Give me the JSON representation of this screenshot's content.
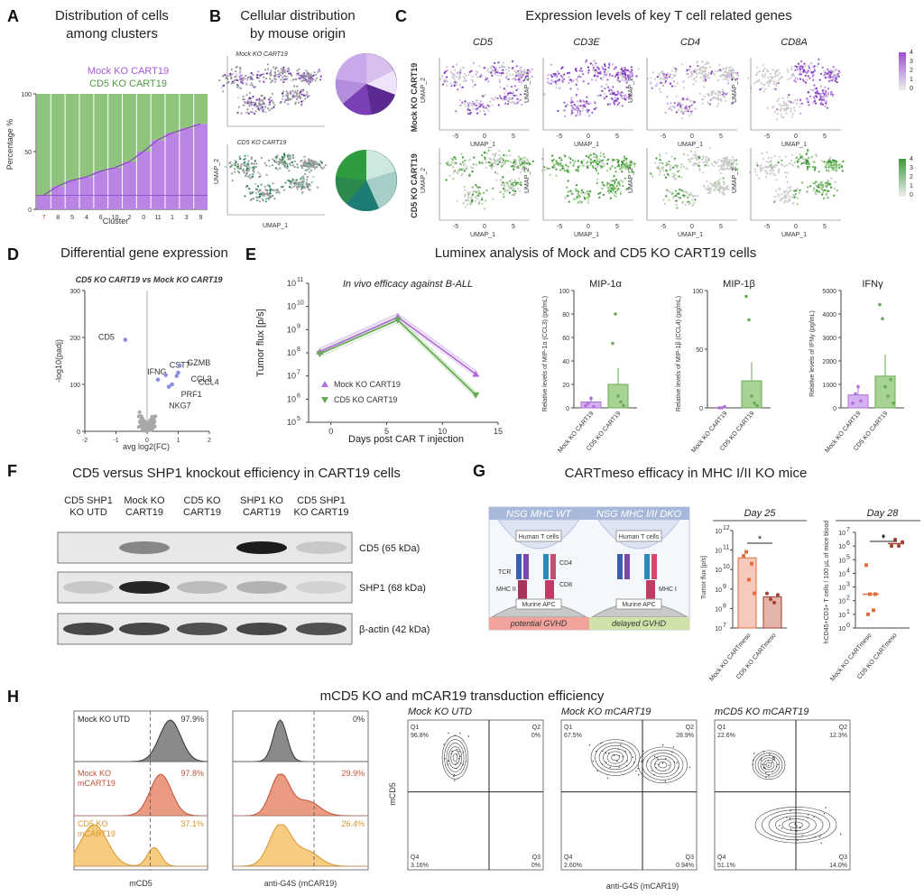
{
  "colors": {
    "mock": "#b06ed9",
    "cd5ko": "#6aaa55",
    "mock_light": "#d8b7ef",
    "cd5ko_light": "#a9d39a",
    "orange": "#e0703f",
    "salmon": "#e98c74",
    "yellow": "#f5c06a",
    "brown": "#a0402e",
    "grey_cells": "#c8c8c8"
  },
  "panels": {
    "A": {
      "letter": "A",
      "title1": "Distribution of cells",
      "title2": "among clusters",
      "legend_mock": "Mock KO CART19",
      "legend_cd5": "CD5 KO CART19",
      "ylabel": "Percentage %",
      "xlabel": "Cluster"
    },
    "B": {
      "letter": "B",
      "title1": "Cellular distribution",
      "title2": "by mouse origin",
      "mock_label": "Mock KO CART19",
      "cd5_label": "CD5 KO CART19",
      "axis_x": "UMAP_1",
      "axis_y": "UMAP_2"
    },
    "C": {
      "letter": "C",
      "title": "Expression levels of key T cell related genes",
      "genes": [
        "CD5",
        "CD3E",
        "CD4",
        "CD8A"
      ],
      "row_mock": "Mock KO CART19",
      "row_cd5": "CD5 KO CART19",
      "axis_x": "UMAP_1",
      "axis_y": "UMAP_2"
    },
    "D": {
      "letter": "D",
      "title": "Differential gene expression",
      "subtitle": "CD5 KO CART19 vs Mock KO CART19",
      "ylabel": "-log10(padj)",
      "xlabel": "avg log2(FC)",
      "genes": [
        "CD5",
        "IFNG",
        "CST7",
        "GZMB",
        "CCL3",
        "CCL4",
        "PRF1",
        "NKG7"
      ]
    },
    "E": {
      "letter": "E",
      "title": "Luminex analysis of Mock and CD5 KO CART19 cells",
      "invivo_title": "In vivo efficacy against B-ALL",
      "ylabel": "Tumor flux [p/s]",
      "xlabel": "Days post CAR T injection",
      "legend_mock": "Mock KO CART19",
      "legend_cd5": "CD5 KO CART19",
      "mip1a_title": "MIP-1α",
      "mip1b_title": "MIP-1β",
      "ifng_title": "IFNγ",
      "mip1a_ylabel": "Relative levels of MIP-1α (CCL3) (pg/mL)",
      "mip1b_ylabel": "Relative levels of MIP-1β (CCL4) (pg/mL)",
      "ifng_ylabel": "Relative levels of IFNγ (pg/mL)",
      "cat_mock": "Mock KO CART19",
      "cat_cd5": "CD5 KO CART19"
    },
    "F": {
      "letter": "F",
      "title": "CD5 versus SHP1 knockout efficiency in CART19 cells",
      "lanes": [
        "CD5 SHP1 KO UTD",
        "Mock KO CART19",
        "CD5 KO CART19",
        "SHP1 KO CART19",
        "CD5 SHP1 KO CART19"
      ],
      "bands": [
        "CD5 (65 kDa)",
        "SHP1 (68 kDa)",
        "β-actin (42 kDa)"
      ]
    },
    "G": {
      "letter": "G",
      "title": "CARTmeso efficacy in MHC I/II KO mice",
      "wt_label": "NSG MHC WT",
      "dko_label": "NSG MHC I/II DKO",
      "human_t": "Human T cells",
      "murine_apc": "Murine APC",
      "tcr": "TCR",
      "cd4": "CD4",
      "cd8": "CD8",
      "mhc2": "MHC II",
      "mhc1": "MHC I",
      "potential": "potential GVHD",
      "delayed": "delayed GVHD",
      "day25": "Day 25",
      "day28": "Day 28",
      "flux_ylabel": "Tumor flux [p/s]",
      "count_ylabel": "hCD45+CD3+ T cells / 100 µL of mice blood",
      "cat_mock": "Mock KO CARTmeso",
      "cat_cd5": "CD5 KO CARTmeso"
    },
    "H": {
      "letter": "H",
      "title": "mCD5 KO and mCAR19 transduction efficiency",
      "hist1_labels": [
        "Mock KO UTD",
        "Mock KO mCART19",
        "CD5 KO mCART19"
      ],
      "hist1_pcts": [
        "97.9%",
        "97.8%",
        "37.1%"
      ],
      "hist1_xlabel": "mCD5",
      "hist2_pcts": [
        "0%",
        "29.9%",
        "26.4%"
      ],
      "hist2_xlabel": "anti-G4S (mCAR19)",
      "flow_titles": [
        "Mock KO UTD",
        "Mock KO mCART19",
        "mCD5 KO mCART19"
      ],
      "flow_q1": [
        "96.8%",
        "67.5%",
        "22.6%"
      ],
      "flow_q2": [
        "0%",
        "28.9%",
        "12.3%"
      ],
      "flow_q3": [
        "0%",
        "0.94%",
        "14.0%"
      ],
      "flow_q4": [
        "3.16%",
        "2.60%",
        "51.1%"
      ],
      "flow_ylabel": "mCD5",
      "flow_xlabel": "anti-G4S (mCAR19)",
      "quad_names": [
        "Q1",
        "Q2",
        "Q3",
        "Q4"
      ]
    }
  },
  "chart_data": [
    {
      "type": "bar",
      "panel": "A",
      "categories": [
        "7",
        "8",
        "5",
        "4",
        "6",
        "10",
        "2",
        "0",
        "11",
        "1",
        "3",
        "9"
      ],
      "series": [
        {
          "name": "Mock KO CART19",
          "values": [
            12,
            20,
            25,
            28,
            33,
            36,
            41,
            50,
            60,
            66,
            70,
            74
          ]
        },
        {
          "name": "CD5 KO CART19",
          "values": [
            88,
            80,
            75,
            72,
            67,
            64,
            59,
            50,
            40,
            34,
            30,
            26
          ]
        }
      ],
      "ylabel": "Percentage %",
      "xlabel": "Cluster",
      "ylim": [
        0,
        100
      ],
      "yticks": [
        0,
        50,
        100
      ]
    },
    {
      "type": "line",
      "panel": "E",
      "x": [
        -1,
        6,
        13
      ],
      "series": [
        {
          "name": "Mock KO CART19",
          "values": [
            110000000.0,
            3500000000.0,
            12000000.0
          ]
        },
        {
          "name": "CD5 KO CART19",
          "values": [
            90000000.0,
            2600000000.0,
            1500000.0
          ]
        }
      ],
      "ylabel": "Tumor flux [p/s]",
      "xlabel": "Days post CAR T injection",
      "xlim": [
        -2,
        15
      ],
      "xticks": [
        0,
        5,
        10,
        15
      ],
      "ylim": [
        100000.0,
        100000000000.0
      ],
      "yscale": "log"
    },
    {
      "type": "bar",
      "panel": "E",
      "title": "MIP-1α",
      "categories": [
        "Mock KO CART19",
        "CD5 KO CART19"
      ],
      "values": [
        5,
        20
      ],
      "ylim": [
        0,
        100
      ],
      "yticks": [
        0,
        20,
        40,
        60,
        80,
        100
      ]
    },
    {
      "type": "bar",
      "panel": "E",
      "title": "MIP-1β",
      "categories": [
        "Mock KO CART19",
        "CD5 KO CART19"
      ],
      "values": [
        0,
        23
      ],
      "ylim": [
        0,
        100
      ],
      "yticks": [
        0,
        50,
        100
      ]
    },
    {
      "type": "bar",
      "panel": "E",
      "title": "IFNγ",
      "categories": [
        "Mock KO CART19",
        "CD5 KO CART19"
      ],
      "values": [
        550,
        1350
      ],
      "ylim": [
        0,
        5000
      ],
      "yticks": [
        0,
        1000,
        2000,
        3000,
        4000,
        5000
      ]
    },
    {
      "type": "bar",
      "panel": "G",
      "title": "Day 25",
      "categories": [
        "Mock KO CARTmeso",
        "CD5 KO CARTmeso"
      ],
      "values": [
        40000000000.0,
        400000000.0
      ],
      "yscale": "log",
      "ylim": [
        10000000.0,
        1000000000000.0
      ]
    },
    {
      "type": "scatter",
      "panel": "G",
      "title": "Day 28",
      "categories": [
        "Mock KO CARTmeso",
        "CD5 KO CARTmeso"
      ],
      "medians": [
        300.0,
        1500000.0
      ],
      "yscale": "log",
      "ylim": [
        1.0,
        10000000.0
      ]
    }
  ]
}
